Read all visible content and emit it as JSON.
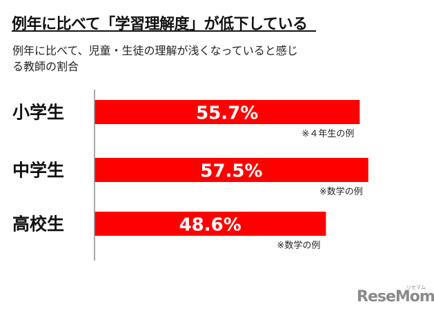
{
  "title": "例年に比べて「学習理解度」が低下している",
  "subtitle": "例年に比べて、児童・生徒の理解が浅くなっていると感じる教師の割合",
  "chart_data": {
    "type": "bar",
    "orientation": "horizontal",
    "categories": [
      "小学生",
      "中学生",
      "高校生"
    ],
    "values": [
      55.7,
      57.5,
      48.6
    ],
    "value_labels": [
      "55.7%",
      "57.5%",
      "48.6%"
    ],
    "notes": [
      "※４年生の例",
      "※数学の例",
      "※数学の例"
    ],
    "bar_color": "#ff0000",
    "grid": false
  },
  "logo": {
    "text": "ReseMom",
    "kana": "リセマム"
  }
}
